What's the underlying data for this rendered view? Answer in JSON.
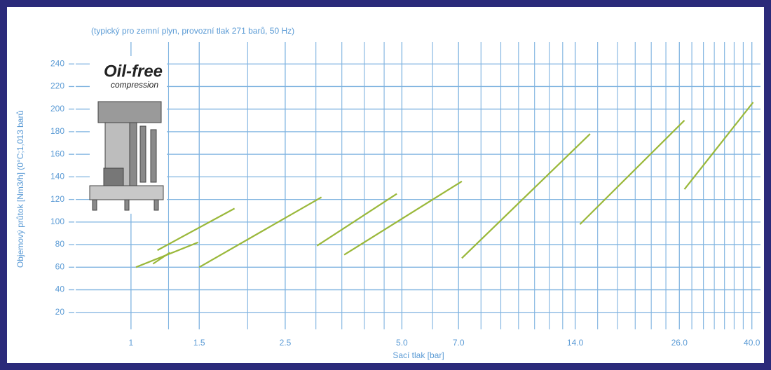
{
  "chart_data": {
    "type": "line-segments",
    "subtitle": "(typický pro zemní plyn, provozní tlak 271 barů, 50 Hz)",
    "x_label": "Sací tlak [bar]",
    "y_label": "Objemový průtok [Nm3/h] (0°C;1,013 barů",
    "x_log": true,
    "xlim": [
      0.72,
      42.1
    ],
    "ylim": [
      0,
      260
    ],
    "xticks": [
      1,
      1.5,
      2.5,
      {
        "value": 5,
        "label": "5.0"
      },
      {
        "value": 7,
        "label": "7.0"
      },
      {
        "value": 14,
        "label": "14.0"
      },
      {
        "value": 26,
        "label": "26.0"
      },
      {
        "value": 40,
        "label": "40.0"
      }
    ],
    "x_minor_grid": [
      1.25,
      2,
      3,
      3.5,
      4,
      4.5,
      6,
      8,
      9,
      10,
      11,
      12,
      13,
      16,
      18,
      20,
      22,
      24,
      28,
      30,
      32,
      34,
      36,
      38
    ],
    "yticks": [
      20,
      40,
      60,
      80,
      100,
      120,
      140,
      160,
      180,
      200,
      220,
      240
    ],
    "grid": true,
    "color": "#9ab83a",
    "series": [
      {
        "x": [
          1.03,
          1.49
        ],
        "values": [
          60,
          82
        ]
      },
      {
        "x": [
          1.14,
          1.26
        ],
        "values": [
          63,
          73
        ]
      },
      {
        "x": [
          1.17,
          1.85
        ],
        "values": [
          75,
          112
        ]
      },
      {
        "x": [
          1.5,
          3.1
        ],
        "values": [
          60,
          122
        ]
      },
      {
        "x": [
          3.02,
          4.85
        ],
        "values": [
          79,
          125
        ]
      },
      {
        "x": [
          3.55,
          7.14
        ],
        "values": [
          71,
          136
        ]
      },
      {
        "x": [
          7.14,
          15.3
        ],
        "values": [
          68,
          178
        ]
      },
      {
        "x": [
          14.4,
          26.8
        ],
        "values": [
          98,
          190
        ]
      },
      {
        "x": [
          26.8,
          40.3
        ],
        "values": [
          129,
          206
        ]
      }
    ]
  },
  "logo": {
    "title": "Oil-free",
    "subtitle": "compression"
  }
}
